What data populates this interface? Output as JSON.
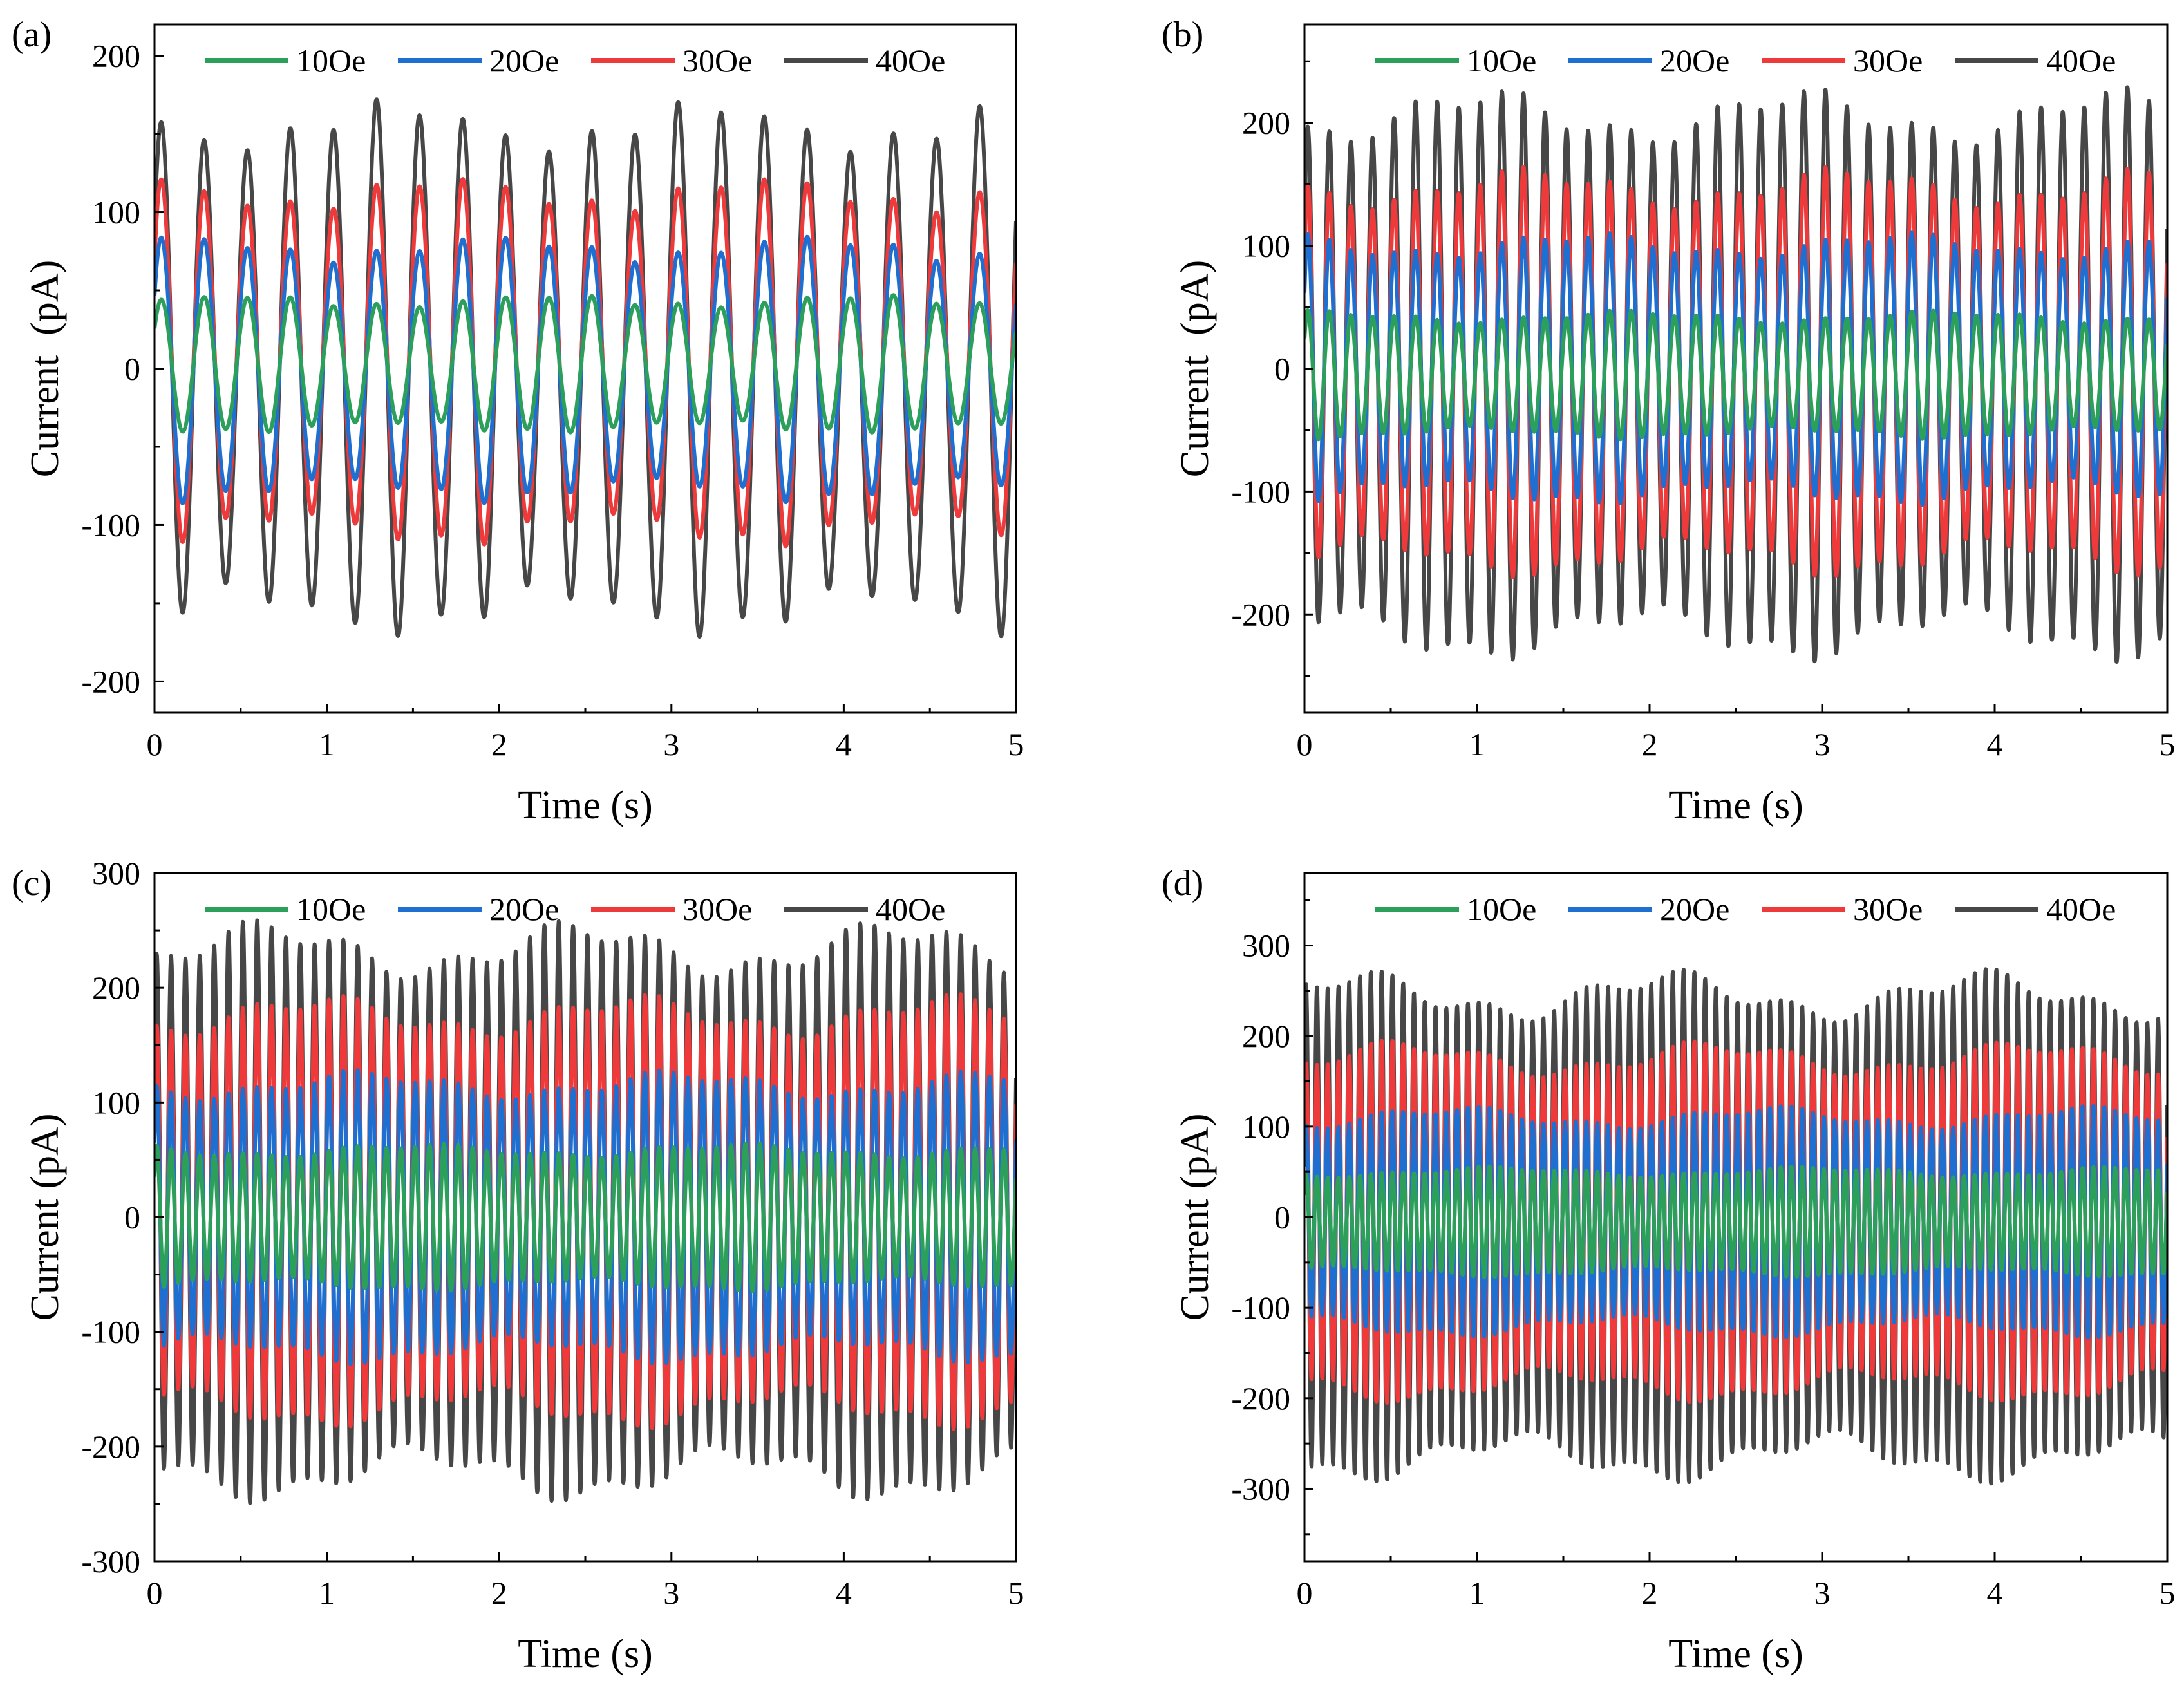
{
  "figure": {
    "colors": {
      "10Oe": "#2ca05a",
      "20Oe": "#1f6fd0",
      "30Oe": "#ee3a3a",
      "40Oe": "#474747"
    }
  },
  "chart_data": [
    {
      "panel": "(a)",
      "type": "line",
      "xlabel": "Time (s)",
      "ylabel": "Current  (pA)",
      "xlim": [
        0,
        5
      ],
      "ylim": [
        -220,
        220
      ],
      "xticks": [
        0,
        1,
        2,
        3,
        4,
        5
      ],
      "yticks": [
        -200,
        -100,
        0,
        100,
        200
      ],
      "legend_position": "top",
      "frequency_hz": 4,
      "series": [
        {
          "name": "10Oe",
          "color": "#2ca05a",
          "amplitude": 40,
          "offset": 3
        },
        {
          "name": "20Oe",
          "color": "#1f6fd0",
          "amplitude": 77,
          "offset": 0
        },
        {
          "name": "30Oe",
          "color": "#ee3a3a",
          "amplitude": 107,
          "offset": 5
        },
        {
          "name": "40Oe",
          "color": "#474747",
          "amplitude": 155,
          "offset": 0
        }
      ]
    },
    {
      "panel": "(b)",
      "type": "line",
      "xlabel": "Time (s)",
      "ylabel": "Current  (pA)",
      "xlim": [
        0,
        5
      ],
      "ylim": [
        -280,
        280
      ],
      "xticks": [
        0,
        1,
        2,
        3,
        4,
        5
      ],
      "yticks": [
        -200,
        -100,
        0,
        100,
        200
      ],
      "legend_position": "top",
      "frequency_hz": 8,
      "series": [
        {
          "name": "10Oe",
          "color": "#2ca05a",
          "amplitude": 47,
          "offset": -5
        },
        {
          "name": "20Oe",
          "color": "#1f6fd0",
          "amplitude": 100,
          "offset": 0
        },
        {
          "name": "30Oe",
          "color": "#ee3a3a",
          "amplitude": 150,
          "offset": -3
        },
        {
          "name": "40Oe",
          "color": "#474747",
          "amplitude": 210,
          "offset": -5
        }
      ]
    },
    {
      "panel": "(c)",
      "type": "line",
      "xlabel": "Time (s)",
      "ylabel": "Current (pA)",
      "xlim": [
        0,
        5
      ],
      "ylim": [
        -300,
        300
      ],
      "xticks": [
        0,
        1,
        2,
        3,
        4,
        5
      ],
      "yticks": [
        -300,
        -200,
        -100,
        0,
        100,
        200,
        300
      ],
      "legend_position": "top",
      "frequency_hz": 12,
      "series": [
        {
          "name": "10Oe",
          "color": "#2ca05a",
          "amplitude": 58,
          "offset": 0
        },
        {
          "name": "20Oe",
          "color": "#1f6fd0",
          "amplitude": 115,
          "offset": 0
        },
        {
          "name": "30Oe",
          "color": "#ee3a3a",
          "amplitude": 170,
          "offset": 5
        },
        {
          "name": "40Oe",
          "color": "#474747",
          "amplitude": 228,
          "offset": 5
        }
      ]
    },
    {
      "panel": "(d)",
      "type": "line",
      "xlabel": "Time (s)",
      "ylabel": "Current (pA)",
      "xlim": [
        0,
        5
      ],
      "ylim": [
        -380,
        380
      ],
      "xticks": [
        0,
        1,
        2,
        3,
        4,
        5
      ],
      "yticks": [
        -300,
        -200,
        -100,
        0,
        100,
        200,
        300
      ],
      "legend_position": "top",
      "frequency_hz": 16,
      "series": [
        {
          "name": "10Oe",
          "color": "#2ca05a",
          "amplitude": 55,
          "offset": -5
        },
        {
          "name": "20Oe",
          "color": "#1f6fd0",
          "amplitude": 115,
          "offset": -5
        },
        {
          "name": "30Oe",
          "color": "#ee3a3a",
          "amplitude": 180,
          "offset": -5
        },
        {
          "name": "40Oe",
          "color": "#474747",
          "amplitude": 255,
          "offset": -10
        }
      ]
    }
  ]
}
